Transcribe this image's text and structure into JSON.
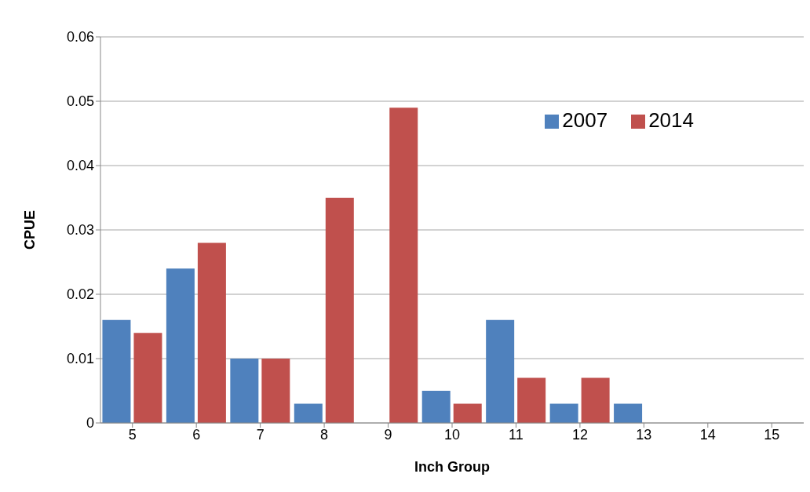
{
  "chart_data": {
    "type": "bar",
    "xlabel": "Inch Group",
    "ylabel": "CPUE",
    "categories": [
      "5",
      "6",
      "7",
      "8",
      "9",
      "10",
      "11",
      "12",
      "13",
      "14",
      "15"
    ],
    "series": [
      {
        "name": "2007",
        "color": "#4f81bd",
        "values": [
          0.016,
          0.024,
          0.01,
          0.003,
          0,
          0.005,
          0.016,
          0.003,
          0.003,
          0,
          0
        ]
      },
      {
        "name": "2014",
        "color": "#c0504d",
        "values": [
          0.014,
          0.028,
          0.01,
          0.035,
          0.049,
          0.003,
          0.007,
          0.007,
          0,
          0,
          0
        ]
      }
    ],
    "ylim": [
      0,
      0.06
    ],
    "yticks": [
      0,
      0.01,
      0.02,
      0.03,
      0.04,
      0.05,
      0.06
    ],
    "grid": "y",
    "legend": "top right"
  }
}
